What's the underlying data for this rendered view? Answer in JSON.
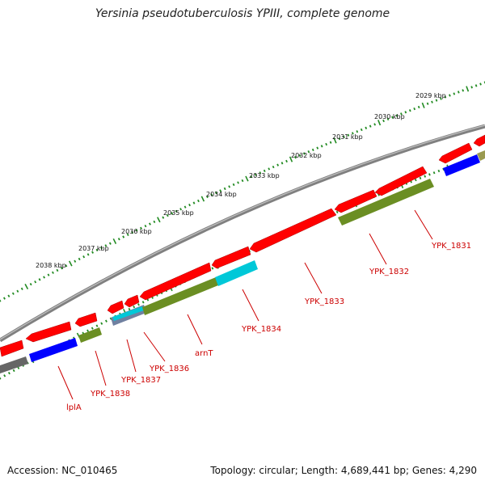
{
  "title": "Yersinia pseudotuberculosis YPIII, complete genome",
  "footer": {
    "accession": "Accession: NC_010465",
    "stats": "Topology: circular; Length: 4,689,441 bp; Genes: 4,290"
  },
  "colors": {
    "cds_red": "#ff0000",
    "gene_olive": "#6b8e23",
    "gene_blue": "#0000ff",
    "gene_cyan": "#00c8d8",
    "gene_gray": "#666666",
    "backbone": "#808080",
    "ticks": "#228b22",
    "labels": "#cc0000"
  },
  "kbp_scale": [
    {
      "label": "2038 kbp",
      "kbp": 2038
    },
    {
      "label": "2037 kbp",
      "kbp": 2037
    },
    {
      "label": "2036 kbp",
      "kbp": 2036
    },
    {
      "label": "2035 kbp",
      "kbp": 2035
    },
    {
      "label": "2034 kbp",
      "kbp": 2034
    },
    {
      "label": "2033 kbp",
      "kbp": 2033
    },
    {
      "label": "2032 kbp",
      "kbp": 2032
    },
    {
      "label": "2031 kbp",
      "kbp": 2031
    },
    {
      "label": "2030 kbp",
      "kbp": 2030
    },
    {
      "label": "2029 kbp",
      "kbp": 2029
    }
  ],
  "gene_labels": [
    {
      "name": "lplA"
    },
    {
      "name": "YPK_1838"
    },
    {
      "name": "YPK_1837"
    },
    {
      "name": "YPK_1836"
    },
    {
      "name": "arnT"
    },
    {
      "name": "YPK_1834"
    },
    {
      "name": "YPK_1833"
    },
    {
      "name": "YPK_1832"
    },
    {
      "name": "YPK_1831"
    }
  ]
}
